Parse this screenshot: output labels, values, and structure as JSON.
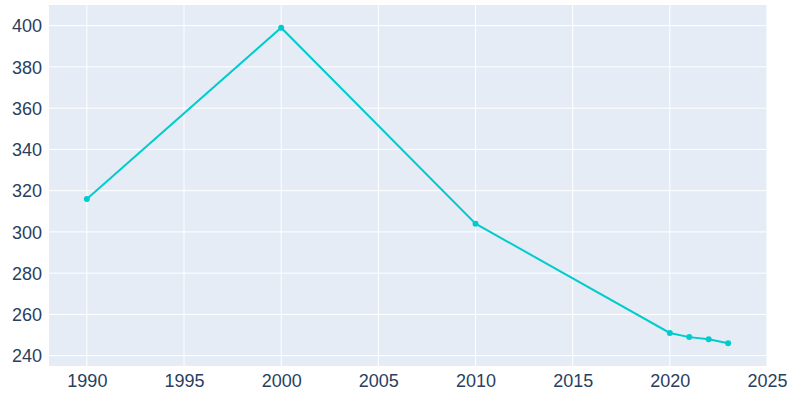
{
  "chart_data": {
    "type": "line",
    "x": [
      1990,
      2000,
      2010,
      2020,
      2021,
      2022,
      2023
    ],
    "values": [
      316,
      399,
      304,
      251,
      249,
      248,
      246
    ],
    "color": "#00cccc",
    "marker": "circle",
    "xlim": [
      1988,
      2025
    ],
    "xticks": [
      1990,
      1995,
      2000,
      2005,
      2010,
      2015,
      2020,
      2025
    ],
    "ylim": [
      235,
      410
    ],
    "yticks": [
      240,
      260,
      280,
      300,
      320,
      340,
      360,
      380,
      400
    ],
    "grid": true
  }
}
